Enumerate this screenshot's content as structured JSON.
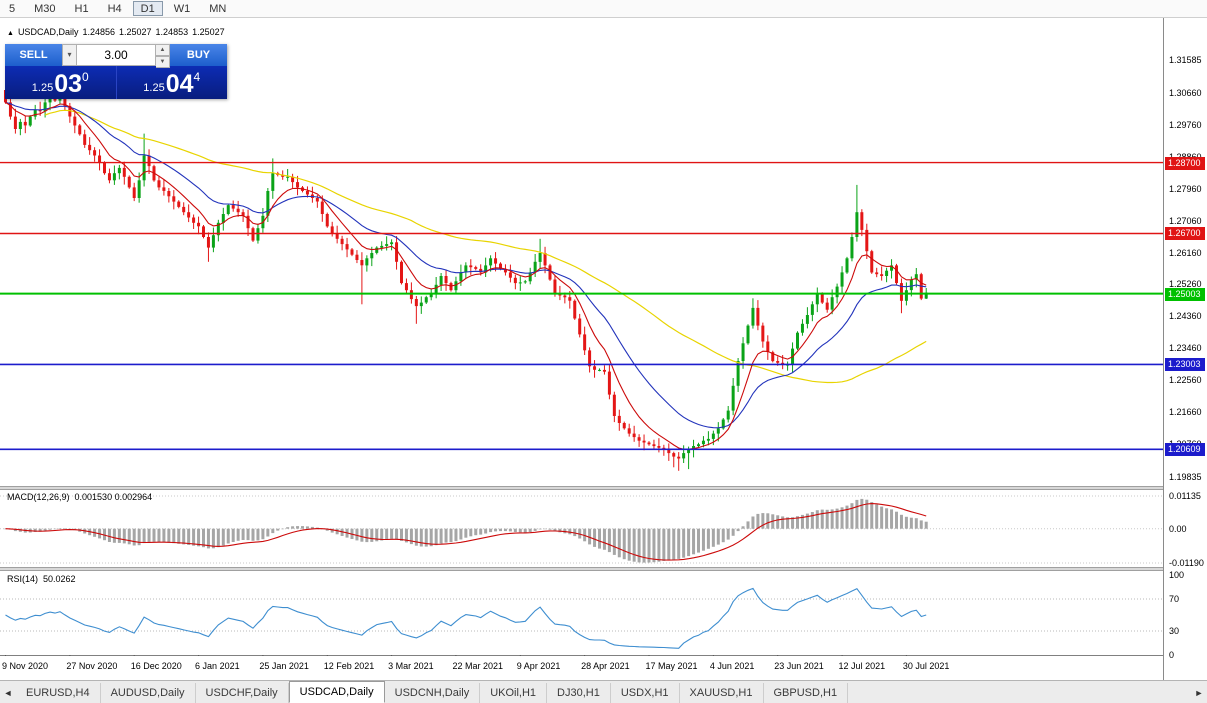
{
  "toolbar": {
    "timeframes": [
      {
        "label": "5",
        "active": false
      },
      {
        "label": "M30",
        "active": false
      },
      {
        "label": "H1",
        "active": false
      },
      {
        "label": "H4",
        "active": false
      },
      {
        "label": "D1",
        "active": true
      },
      {
        "label": "W1",
        "active": false
      },
      {
        "label": "MN",
        "active": false
      }
    ]
  },
  "chart": {
    "symbol": "USDCAD,Daily",
    "ohlc": {
      "open": "1.24856",
      "high": "1.25027",
      "low": "1.24853",
      "close": "1.25027"
    }
  },
  "trade": {
    "sell_label": "SELL",
    "buy_label": "BUY",
    "volume": "3.00",
    "sell": {
      "base": "1.25",
      "big": "03",
      "sup": "0"
    },
    "buy": {
      "base": "1.25",
      "big": "04",
      "sup": "4"
    }
  },
  "indicators": {
    "macd": {
      "label": "MACD(12,26,9)",
      "values": "0.001530 0.002964",
      "ticks": [
        {
          "v": 0.01135,
          "t": "0.01135"
        },
        {
          "v": 0,
          "t": "0.00"
        },
        {
          "v": -0.0119,
          "t": "-0.01190"
        }
      ]
    },
    "rsi": {
      "label": "RSI(14)",
      "value": "50.0262",
      "ticks": [
        {
          "v": 100,
          "t": "100"
        },
        {
          "v": 70,
          "t": "70"
        },
        {
          "v": 30,
          "t": "30"
        },
        {
          "v": 0,
          "t": "0"
        }
      ],
      "levels": [
        70,
        30
      ]
    }
  },
  "chart_data": {
    "type": "candlestick",
    "symbol": "USDCAD",
    "timeframe": "Daily",
    "price_range": {
      "top": 1.325,
      "bottom": 1.196
    },
    "first_open": 1.3075,
    "closes": [
      1.304,
      1.3,
      1.2965,
      1.2985,
      1.2975,
      1.3,
      1.302,
      1.3015,
      1.304,
      1.3055,
      1.3045,
      1.306,
      1.303,
      1.3,
      1.2975,
      1.295,
      1.292,
      1.2905,
      1.289,
      1.287,
      1.284,
      1.282,
      1.284,
      1.2855,
      1.283,
      1.28,
      1.277,
      1.282,
      1.289,
      1.286,
      1.282,
      1.28,
      1.279,
      1.2775,
      1.276,
      1.2745,
      1.273,
      1.2715,
      1.27,
      1.269,
      1.266,
      1.263,
      1.2665,
      1.27,
      1.2725,
      1.275,
      1.274,
      1.273,
      1.272,
      1.2685,
      1.265,
      1.2685,
      1.272,
      1.279,
      1.284,
      1.2835,
      1.283,
      1.283,
      1.2815,
      1.28,
      1.279,
      1.278,
      1.277,
      1.276,
      1.2725,
      1.269,
      1.267,
      1.2655,
      1.264,
      1.2625,
      1.261,
      1.2595,
      1.258,
      1.26,
      1.2615,
      1.263,
      1.2635,
      1.264,
      1.2645,
      1.259,
      1.253,
      1.251,
      1.2485,
      1.2465,
      1.2475,
      1.249,
      1.25,
      1.2525,
      1.255,
      1.253,
      1.251,
      1.2535,
      1.256,
      1.258,
      1.2575,
      1.257,
      1.256,
      1.258,
      1.26,
      1.2585,
      1.257,
      1.256,
      1.2545,
      1.253,
      1.2532,
      1.2535,
      1.256,
      1.259,
      1.2615,
      1.258,
      1.254,
      1.25,
      1.2495,
      1.249,
      1.248,
      1.243,
      1.2385,
      1.234,
      1.2295,
      1.2285,
      1.2285,
      1.228,
      1.2215,
      1.2155,
      1.2135,
      1.212,
      1.2105,
      1.2095,
      1.2085,
      1.208,
      1.2075,
      1.207,
      1.2065,
      1.206,
      1.205,
      1.204,
      1.2035,
      1.205,
      1.206,
      1.207,
      1.2075,
      1.2085,
      1.209,
      1.2105,
      1.212,
      1.2145,
      1.217,
      1.224,
      1.231,
      1.236,
      1.241,
      1.246,
      1.241,
      1.2365,
      1.2335,
      1.231,
      1.2305,
      1.23,
      1.23,
      1.2345,
      1.239,
      1.2415,
      1.244,
      1.247,
      1.25,
      1.2475,
      1.2455,
      1.249,
      1.252,
      1.256,
      1.26,
      1.266,
      1.273,
      1.268,
      1.262,
      1.256,
      1.2555,
      1.255,
      1.2565,
      1.258,
      1.253,
      1.248,
      1.251,
      1.254,
      1.2555,
      1.2486,
      1.2503
    ],
    "wick_overrides": [
      [
        0,
        "h",
        1.3088
      ],
      [
        8,
        "h",
        1.3085
      ],
      [
        11,
        "h",
        1.3092
      ],
      [
        28,
        "h",
        1.2952
      ],
      [
        41,
        "l",
        1.259
      ],
      [
        54,
        "h",
        1.2882
      ],
      [
        72,
        "l",
        1.247
      ],
      [
        83,
        "l",
        1.2415
      ],
      [
        108,
        "h",
        1.2655
      ],
      [
        135,
        "l",
        1.201
      ],
      [
        136,
        "l",
        1.2
      ],
      [
        138,
        "l",
        1.2005
      ],
      [
        151,
        "h",
        1.2487
      ],
      [
        172,
        "h",
        1.2807
      ],
      [
        181,
        "l",
        1.2445
      ],
      [
        186,
        "l",
        1.2485
      ]
    ],
    "ma_periods": {
      "fast": 8,
      "mid": 21,
      "slow": 55
    },
    "y_ticks": [
      1.31585,
      1.3066,
      1.2976,
      1.2886,
      1.2796,
      1.2706,
      1.2616,
      1.2526,
      1.2436,
      1.2346,
      1.2256,
      1.2166,
      1.2076,
      1.19835
    ],
    "hlines": [
      {
        "price": 1.287,
        "label": "1.28700",
        "color": "#e01414",
        "width": 1.4
      },
      {
        "price": 1.267,
        "label": "1.26700",
        "color": "#e01414",
        "width": 1.4
      },
      {
        "price": 1.25003,
        "label": "1.25003",
        "color": "#00c000",
        "width": 2
      },
      {
        "price": 1.23003,
        "label": "1.23003",
        "color": "#1c1ccc",
        "width": 1.6
      },
      {
        "price": 1.20609,
        "label": "1.20609",
        "color": "#1c1ccc",
        "width": 1.6
      }
    ],
    "x_labels": [
      {
        "i": 0,
        "t": "9 Nov 2020"
      },
      {
        "i": 13,
        "t": "27 Nov 2020"
      },
      {
        "i": 26,
        "t": "16 Dec 2020"
      },
      {
        "i": 39,
        "t": "6 Jan 2021"
      },
      {
        "i": 52,
        "t": "25 Jan 2021"
      },
      {
        "i": 65,
        "t": "12 Feb 2021"
      },
      {
        "i": 78,
        "t": "3 Mar 2021"
      },
      {
        "i": 91,
        "t": "22 Mar 2021"
      },
      {
        "i": 104,
        "t": "9 Apr 2021"
      },
      {
        "i": 117,
        "t": "28 Apr 2021"
      },
      {
        "i": 130,
        "t": "17 May 2021"
      },
      {
        "i": 143,
        "t": "4 Jun 2021"
      },
      {
        "i": 156,
        "t": "23 Jun 2021"
      },
      {
        "i": 169,
        "t": "12 Jul 2021"
      },
      {
        "i": 182,
        "t": "30 Jul 2021"
      }
    ],
    "colors": {
      "up": "#0aa318",
      "down": "#e41616",
      "ma_fast": "#cc0a0a",
      "ma_mid": "#2233bb",
      "ma_slow": "#e8d400",
      "macd_hist": "#a6a6a6",
      "macd_signal": "#cc0a0a",
      "rsi_line": "#3e8ed0"
    }
  },
  "tabs": {
    "items": [
      {
        "label": "EURUSD,H4",
        "active": false
      },
      {
        "label": "AUDUSD,Daily",
        "active": false
      },
      {
        "label": "USDCHF,Daily",
        "active": false
      },
      {
        "label": "USDCAD,Daily",
        "active": true
      },
      {
        "label": "USDCNH,Daily",
        "active": false
      },
      {
        "label": "UKOil,H1",
        "active": false
      },
      {
        "label": "DJ30,H1",
        "active": false
      },
      {
        "label": "USDX,H1",
        "active": false
      },
      {
        "label": "XAUUSD,H1",
        "active": false
      },
      {
        "label": "GBPUSD,H1",
        "active": false
      }
    ]
  }
}
